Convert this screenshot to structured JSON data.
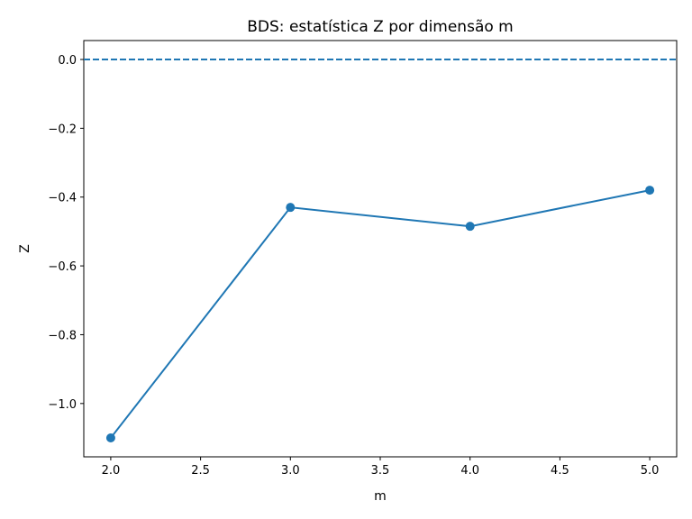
{
  "chart_data": {
    "type": "line",
    "title": "BDS: estatística Z por dimensão m",
    "xlabel": "m",
    "ylabel": "Z",
    "xlim": [
      1.85,
      5.15
    ],
    "ylim": [
      -1.155,
      0.055
    ],
    "x_ticks": [
      2.0,
      2.5,
      3.0,
      3.5,
      4.0,
      4.5,
      5.0
    ],
    "x_tick_labels": [
      "2.0",
      "2.5",
      "3.0",
      "3.5",
      "4.0",
      "4.5",
      "5.0"
    ],
    "y_ticks": [
      0.0,
      -0.2,
      -0.4,
      -0.6,
      -0.8,
      -1.0
    ],
    "y_tick_labels": [
      "0.0",
      "−0.2",
      "−0.4",
      "−0.6",
      "−0.8",
      "−1.0"
    ],
    "grid": false,
    "series": [
      {
        "x": [
          2,
          3,
          4,
          5
        ],
        "y": [
          -1.1,
          -0.43,
          -0.485,
          -0.38
        ],
        "color": "#1f77b4",
        "marker": "circle"
      }
    ],
    "reference_lines": [
      {
        "y": 0.0,
        "style": "dashed",
        "color": "#1f77b4"
      }
    ]
  }
}
